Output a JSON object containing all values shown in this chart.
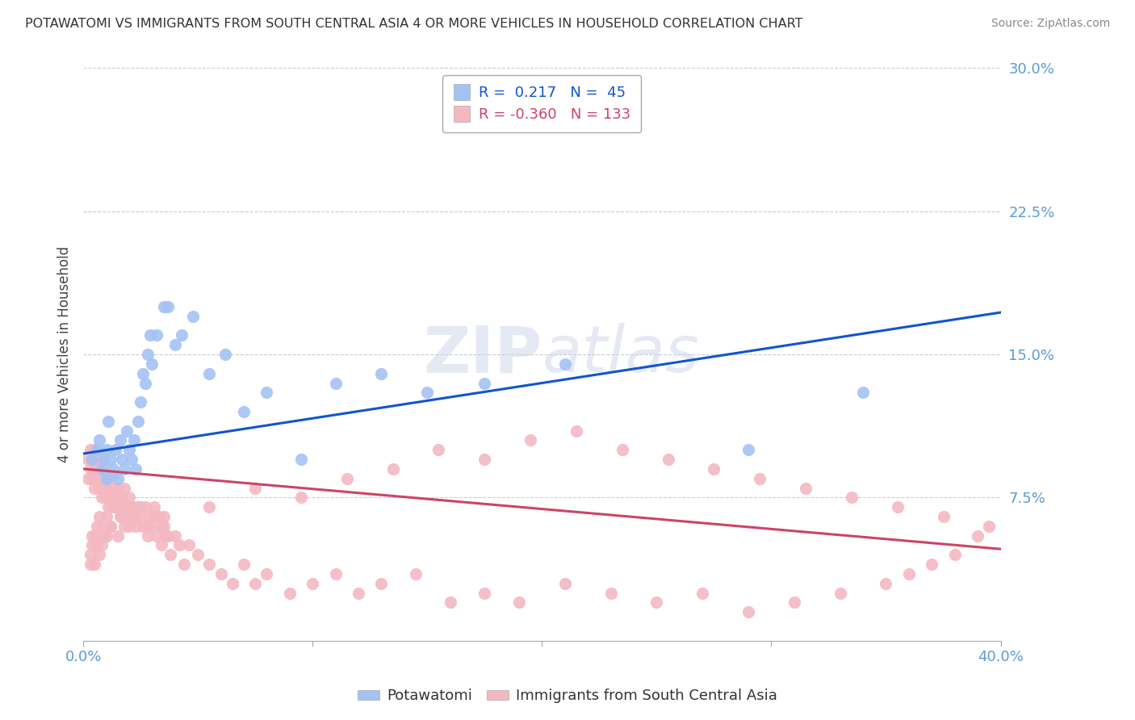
{
  "title": "POTAWATOMI VS IMMIGRANTS FROM SOUTH CENTRAL ASIA 4 OR MORE VEHICLES IN HOUSEHOLD CORRELATION CHART",
  "source": "Source: ZipAtlas.com",
  "ylabel": "4 or more Vehicles in Household",
  "xlim": [
    0.0,
    0.4
  ],
  "ylim": [
    0.0,
    0.3
  ],
  "blue_R": 0.217,
  "blue_N": 45,
  "pink_R": -0.36,
  "pink_N": 133,
  "blue_color": "#a4c2f4",
  "pink_color": "#f4b8c1",
  "blue_line_color": "#1155cc",
  "pink_line_color": "#cc4466",
  "watermark_color": "#ccd5e8",
  "background_color": "#ffffff",
  "legend_label_blue": "Potawatomi",
  "legend_label_pink": "Immigrants from South Central Asia",
  "blue_line_x0": 0.0,
  "blue_line_y0": 0.098,
  "blue_line_x1": 0.4,
  "blue_line_y1": 0.172,
  "pink_line_x0": 0.0,
  "pink_line_y0": 0.09,
  "pink_line_x1": 0.4,
  "pink_line_y1": 0.048,
  "blue_x": [
    0.004,
    0.006,
    0.007,
    0.008,
    0.009,
    0.01,
    0.01,
    0.011,
    0.012,
    0.013,
    0.014,
    0.015,
    0.016,
    0.017,
    0.018,
    0.019,
    0.02,
    0.021,
    0.022,
    0.023,
    0.024,
    0.025,
    0.026,
    0.027,
    0.028,
    0.029,
    0.03,
    0.032,
    0.035,
    0.037,
    0.04,
    0.043,
    0.048,
    0.055,
    0.062,
    0.07,
    0.08,
    0.095,
    0.11,
    0.13,
    0.15,
    0.175,
    0.21,
    0.29,
    0.34
  ],
  "blue_y": [
    0.095,
    0.1,
    0.105,
    0.09,
    0.095,
    0.085,
    0.1,
    0.115,
    0.095,
    0.09,
    0.1,
    0.085,
    0.105,
    0.095,
    0.09,
    0.11,
    0.1,
    0.095,
    0.105,
    0.09,
    0.115,
    0.125,
    0.14,
    0.135,
    0.15,
    0.16,
    0.145,
    0.16,
    0.175,
    0.175,
    0.155,
    0.16,
    0.17,
    0.14,
    0.15,
    0.12,
    0.13,
    0.095,
    0.135,
    0.14,
    0.13,
    0.135,
    0.145,
    0.1,
    0.13
  ],
  "pink_x": [
    0.002,
    0.002,
    0.003,
    0.003,
    0.004,
    0.004,
    0.005,
    0.005,
    0.005,
    0.006,
    0.006,
    0.007,
    0.007,
    0.008,
    0.008,
    0.008,
    0.009,
    0.009,
    0.01,
    0.01,
    0.011,
    0.011,
    0.012,
    0.012,
    0.013,
    0.013,
    0.014,
    0.015,
    0.015,
    0.016,
    0.017,
    0.017,
    0.018,
    0.018,
    0.019,
    0.02,
    0.021,
    0.022,
    0.023,
    0.024,
    0.025,
    0.026,
    0.027,
    0.028,
    0.029,
    0.03,
    0.031,
    0.032,
    0.033,
    0.034,
    0.035,
    0.036,
    0.038,
    0.04,
    0.042,
    0.044,
    0.046,
    0.05,
    0.055,
    0.06,
    0.065,
    0.07,
    0.075,
    0.08,
    0.09,
    0.1,
    0.11,
    0.12,
    0.13,
    0.145,
    0.16,
    0.175,
    0.19,
    0.21,
    0.23,
    0.25,
    0.27,
    0.29,
    0.31,
    0.33,
    0.35,
    0.36,
    0.37,
    0.38,
    0.39,
    0.395,
    0.375,
    0.355,
    0.335,
    0.315,
    0.295,
    0.275,
    0.255,
    0.235,
    0.215,
    0.195,
    0.175,
    0.155,
    0.135,
    0.115,
    0.095,
    0.075,
    0.055,
    0.035,
    0.02,
    0.015,
    0.012,
    0.01,
    0.008,
    0.007,
    0.006,
    0.005,
    0.004,
    0.003,
    0.003,
    0.004,
    0.005,
    0.006,
    0.007,
    0.008,
    0.009,
    0.01,
    0.012,
    0.014,
    0.016,
    0.018,
    0.02,
    0.022,
    0.025,
    0.028,
    0.031,
    0.034,
    0.037
  ],
  "pink_y": [
    0.085,
    0.095,
    0.09,
    0.1,
    0.085,
    0.095,
    0.08,
    0.09,
    0.1,
    0.085,
    0.095,
    0.08,
    0.09,
    0.075,
    0.085,
    0.095,
    0.08,
    0.09,
    0.075,
    0.085,
    0.07,
    0.08,
    0.075,
    0.085,
    0.07,
    0.08,
    0.075,
    0.07,
    0.08,
    0.075,
    0.065,
    0.075,
    0.07,
    0.08,
    0.065,
    0.075,
    0.065,
    0.07,
    0.06,
    0.07,
    0.065,
    0.06,
    0.07,
    0.055,
    0.065,
    0.06,
    0.07,
    0.055,
    0.065,
    0.05,
    0.06,
    0.055,
    0.045,
    0.055,
    0.05,
    0.04,
    0.05,
    0.045,
    0.04,
    0.035,
    0.03,
    0.04,
    0.03,
    0.035,
    0.025,
    0.03,
    0.035,
    0.025,
    0.03,
    0.035,
    0.02,
    0.025,
    0.02,
    0.03,
    0.025,
    0.02,
    0.025,
    0.015,
    0.02,
    0.025,
    0.03,
    0.035,
    0.04,
    0.045,
    0.055,
    0.06,
    0.065,
    0.07,
    0.075,
    0.08,
    0.085,
    0.09,
    0.095,
    0.1,
    0.11,
    0.105,
    0.095,
    0.1,
    0.09,
    0.085,
    0.075,
    0.08,
    0.07,
    0.065,
    0.06,
    0.055,
    0.06,
    0.055,
    0.05,
    0.045,
    0.05,
    0.04,
    0.055,
    0.045,
    0.04,
    0.05,
    0.055,
    0.06,
    0.065,
    0.06,
    0.055,
    0.065,
    0.06,
    0.07,
    0.065,
    0.06,
    0.07,
    0.065,
    0.07,
    0.06,
    0.065,
    0.06,
    0.055
  ]
}
